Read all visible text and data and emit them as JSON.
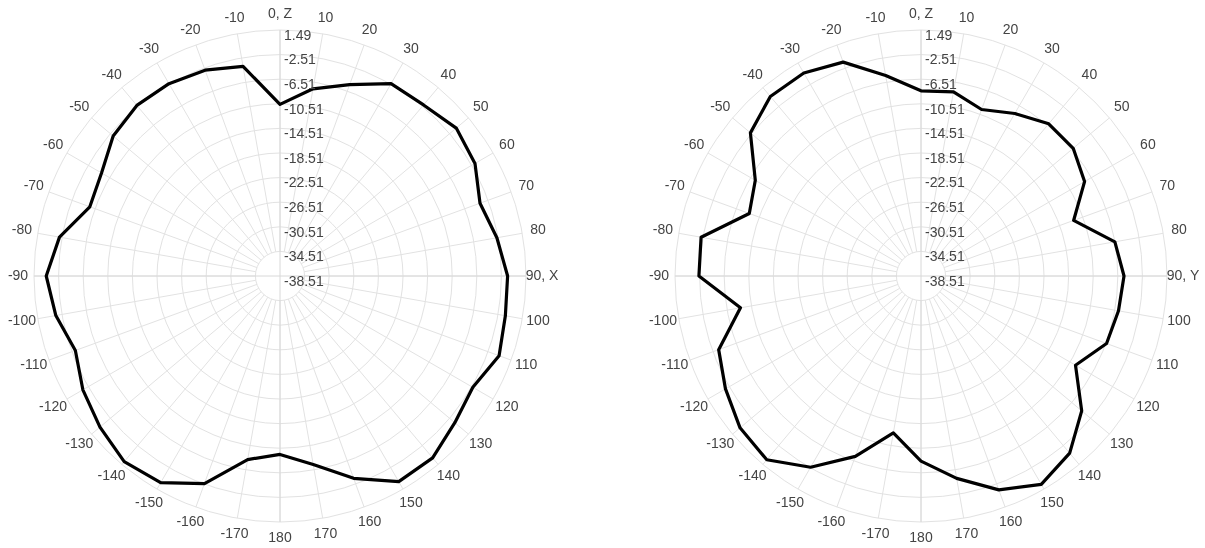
{
  "chart_data": [
    {
      "type": "radar",
      "categories": [
        "0, Z",
        "10",
        "20",
        "30",
        "40",
        "50",
        "60",
        "70",
        "80",
        "90, X",
        "100",
        "110",
        "120",
        "130",
        "140",
        "150",
        "160",
        "170",
        "180",
        "-170",
        "-160",
        "-150",
        "-140",
        "-130",
        "-120",
        "-110",
        "-100",
        "-90",
        "-80",
        "-70",
        "-60",
        "-50",
        "-40",
        "-30",
        "-20",
        "-10"
      ],
      "series": [
        {
          "color": "#000000",
          "values": [
            -10.6,
            -7.6,
            -5.4,
            -2.4,
            -2.2,
            -1.1,
            -1.9,
            -3.9,
            -2.7,
            -1.5,
            -1.3,
            -0.6,
            -2.3,
            -1.4,
            0.1,
            0.1,
            -3.5,
            -7.4,
            -9.5,
            -8.2,
            -2.6,
            0.3,
            0.9,
            -0.3,
            -1.5,
            -3.1,
            -1.5,
            -0.5,
            -2.1,
            -5.6,
            -5.0,
            -3.1,
            -2.3,
            -2.4,
            -2.9,
            -3.9
          ]
        }
      ],
      "ylim": [
        -38.51,
        1.49
      ],
      "yticks": [
        1.49,
        -2.51,
        -6.51,
        -10.51,
        -14.51,
        -18.51,
        -22.51,
        -26.51,
        -30.51,
        -34.51,
        -38.51
      ],
      "grid": true
    },
    {
      "type": "radar",
      "categories": [
        "0, Z",
        "10",
        "20",
        "30",
        "40",
        "50",
        "60",
        "70",
        "80",
        "90, Y",
        "100",
        "110",
        "120",
        "130",
        "140",
        "150",
        "160",
        "170",
        "180",
        "-170",
        "-160",
        "-150",
        "-140",
        "-130",
        "-120",
        "-110",
        "-100",
        "-90",
        "-80",
        "-70",
        "-60",
        "-50",
        "-40",
        "-30",
        "-20",
        "-10"
      ],
      "series": [
        {
          "color": "#000000",
          "values": [
            -8.4,
            -8.1,
            -9.7,
            -8.0,
            -6.2,
            -6.2,
            -7.8,
            -12.1,
            -6.5,
            -5.5,
            -5.9,
            -6.4,
            -9.5,
            -4.4,
            -0.9,
            0.6,
            -1.5,
            -5.1,
            -8.4,
            -12.6,
            -7.3,
            -2.6,
            0.5,
            -0.1,
            -1.8,
            -3.5,
            -8.7,
            -2.4,
            -2.2,
            -8.8,
            -7.4,
            -2.3,
            -0.4,
            -0.4,
            -1.5,
            -5.4
          ]
        }
      ],
      "ylim": [
        -38.51,
        1.49
      ],
      "yticks": [
        1.49,
        -2.51,
        -6.51,
        -10.51,
        -14.51,
        -18.51,
        -22.51,
        -26.51,
        -30.51,
        -34.51,
        -38.51
      ],
      "grid": true
    }
  ]
}
